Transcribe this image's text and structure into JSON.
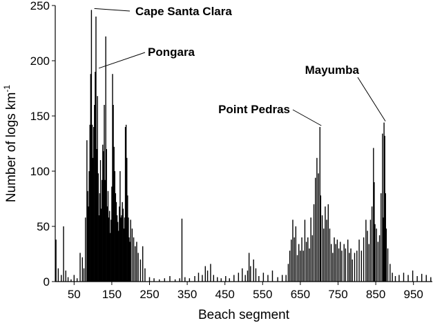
{
  "chart_data": {
    "type": "bar",
    "xlabel": "Beach segment",
    "ylabel_main": "Number of logs km",
    "ylabel_sup": "-1",
    "xlim": [
      0,
      1000
    ],
    "ylim": [
      0,
      250
    ],
    "xticks": [
      50,
      150,
      250,
      350,
      450,
      550,
      650,
      750,
      850,
      950
    ],
    "yticks": [
      0,
      50,
      100,
      150,
      200,
      250
    ],
    "grid": false,
    "legend": "none",
    "bar_color": "#000000",
    "series": [
      {
        "points": [
          [
            2,
            38
          ],
          [
            8,
            12
          ],
          [
            16,
            6
          ],
          [
            22,
            50
          ],
          [
            28,
            10
          ],
          [
            34,
            4
          ],
          [
            42,
            2
          ],
          [
            50,
            6
          ],
          [
            58,
            3
          ],
          [
            66,
            26
          ],
          [
            72,
            22
          ],
          [
            76,
            12
          ],
          [
            80,
            58
          ],
          [
            84,
            128
          ],
          [
            86,
            82
          ],
          [
            88,
            68
          ],
          [
            90,
            100
          ],
          [
            92,
            142
          ],
          [
            94,
            188
          ],
          [
            96,
            246
          ],
          [
            98,
            142
          ],
          [
            100,
            112
          ],
          [
            102,
            140
          ],
          [
            104,
            160
          ],
          [
            106,
            190
          ],
          [
            108,
            240
          ],
          [
            110,
            120
          ],
          [
            112,
            168
          ],
          [
            114,
            98
          ],
          [
            116,
            60
          ],
          [
            118,
            80
          ],
          [
            120,
            110
          ],
          [
            122,
            66
          ],
          [
            124,
            92
          ],
          [
            126,
            124
          ],
          [
            128,
            118
          ],
          [
            130,
            160
          ],
          [
            132,
            92
          ],
          [
            134,
            222
          ],
          [
            136,
            120
          ],
          [
            138,
            68
          ],
          [
            140,
            82
          ],
          [
            142,
            58
          ],
          [
            144,
            64
          ],
          [
            146,
            44
          ],
          [
            148,
            56
          ],
          [
            150,
            86
          ],
          [
            152,
            188
          ],
          [
            154,
            160
          ],
          [
            156,
            122
          ],
          [
            158,
            100
          ],
          [
            160,
            80
          ],
          [
            162,
            72
          ],
          [
            164,
            60
          ],
          [
            166,
            54
          ],
          [
            168,
            46
          ],
          [
            170,
            68
          ],
          [
            172,
            100
          ],
          [
            174,
            58
          ],
          [
            176,
            60
          ],
          [
            178,
            72
          ],
          [
            180,
            66
          ],
          [
            182,
            48
          ],
          [
            184,
            58
          ],
          [
            186,
            140
          ],
          [
            188,
            142
          ],
          [
            190,
            112
          ],
          [
            192,
            78
          ],
          [
            194,
            58
          ],
          [
            196,
            40
          ],
          [
            198,
            36
          ],
          [
            200,
            56
          ],
          [
            204,
            48
          ],
          [
            208,
            40
          ],
          [
            212,
            32
          ],
          [
            216,
            36
          ],
          [
            220,
            26
          ],
          [
            226,
            20
          ],
          [
            232,
            32
          ],
          [
            238,
            12
          ],
          [
            250,
            4
          ],
          [
            262,
            3
          ],
          [
            276,
            2
          ],
          [
            290,
            3
          ],
          [
            304,
            5
          ],
          [
            318,
            2
          ],
          [
            330,
            3
          ],
          [
            336,
            57
          ],
          [
            344,
            4
          ],
          [
            356,
            3
          ],
          [
            370,
            5
          ],
          [
            380,
            8
          ],
          [
            390,
            6
          ],
          [
            398,
            14
          ],
          [
            404,
            10
          ],
          [
            412,
            16
          ],
          [
            420,
            6
          ],
          [
            430,
            4
          ],
          [
            440,
            3
          ],
          [
            452,
            5
          ],
          [
            462,
            3
          ],
          [
            474,
            6
          ],
          [
            486,
            8
          ],
          [
            496,
            12
          ],
          [
            504,
            6
          ],
          [
            510,
            10
          ],
          [
            514,
            26
          ],
          [
            518,
            14
          ],
          [
            526,
            20
          ],
          [
            532,
            12
          ],
          [
            540,
            5
          ],
          [
            552,
            8
          ],
          [
            564,
            6
          ],
          [
            576,
            10
          ],
          [
            590,
            4
          ],
          [
            602,
            6
          ],
          [
            612,
            6
          ],
          [
            618,
            16
          ],
          [
            622,
            28
          ],
          [
            626,
            38
          ],
          [
            630,
            56
          ],
          [
            634,
            40
          ],
          [
            638,
            50
          ],
          [
            642,
            24
          ],
          [
            646,
            34
          ],
          [
            650,
            28
          ],
          [
            654,
            40
          ],
          [
            658,
            28
          ],
          [
            662,
            56
          ],
          [
            666,
            36
          ],
          [
            670,
            40
          ],
          [
            674,
            30
          ],
          [
            678,
            58
          ],
          [
            682,
            42
          ],
          [
            686,
            70
          ],
          [
            690,
            94
          ],
          [
            694,
            112
          ],
          [
            698,
            98
          ],
          [
            702,
            140
          ],
          [
            704,
            78
          ],
          [
            708,
            60
          ],
          [
            712,
            48
          ],
          [
            716,
            68
          ],
          [
            720,
            56
          ],
          [
            724,
            70
          ],
          [
            728,
            48
          ],
          [
            732,
            34
          ],
          [
            736,
            26
          ],
          [
            740,
            40
          ],
          [
            744,
            34
          ],
          [
            748,
            38
          ],
          [
            752,
            30
          ],
          [
            756,
            36
          ],
          [
            760,
            28
          ],
          [
            766,
            34
          ],
          [
            770,
            30
          ],
          [
            776,
            38
          ],
          [
            780,
            26
          ],
          [
            784,
            30
          ],
          [
            788,
            20
          ],
          [
            794,
            26
          ],
          [
            800,
            28
          ],
          [
            806,
            38
          ],
          [
            812,
            28
          ],
          [
            818,
            40
          ],
          [
            824,
            56
          ],
          [
            828,
            46
          ],
          [
            832,
            34
          ],
          [
            836,
            56
          ],
          [
            840,
            68
          ],
          [
            844,
            121
          ],
          [
            846,
            90
          ],
          [
            848,
            52
          ],
          [
            852,
            48
          ],
          [
            856,
            36
          ],
          [
            860,
            42
          ],
          [
            864,
            80
          ],
          [
            868,
            134
          ],
          [
            870,
            58
          ],
          [
            872,
            144
          ],
          [
            874,
            132
          ],
          [
            876,
            80
          ],
          [
            878,
            48
          ],
          [
            882,
            30
          ],
          [
            888,
            16
          ],
          [
            894,
            8
          ],
          [
            902,
            5
          ],
          [
            912,
            6
          ],
          [
            924,
            8
          ],
          [
            936,
            6
          ],
          [
            948,
            10
          ],
          [
            960,
            5
          ],
          [
            972,
            7
          ],
          [
            984,
            6
          ],
          [
            996,
            4
          ]
        ]
      }
    ],
    "annotations": [
      {
        "text": "Cape Santa Clara",
        "x": 100,
        "y": 246
      },
      {
        "text": "Pongara",
        "x": 112,
        "y": 192
      },
      {
        "text": "Point Pedras",
        "x": 702,
        "y": 140
      },
      {
        "text": "Mayumba",
        "x": 872,
        "y": 144
      }
    ]
  }
}
